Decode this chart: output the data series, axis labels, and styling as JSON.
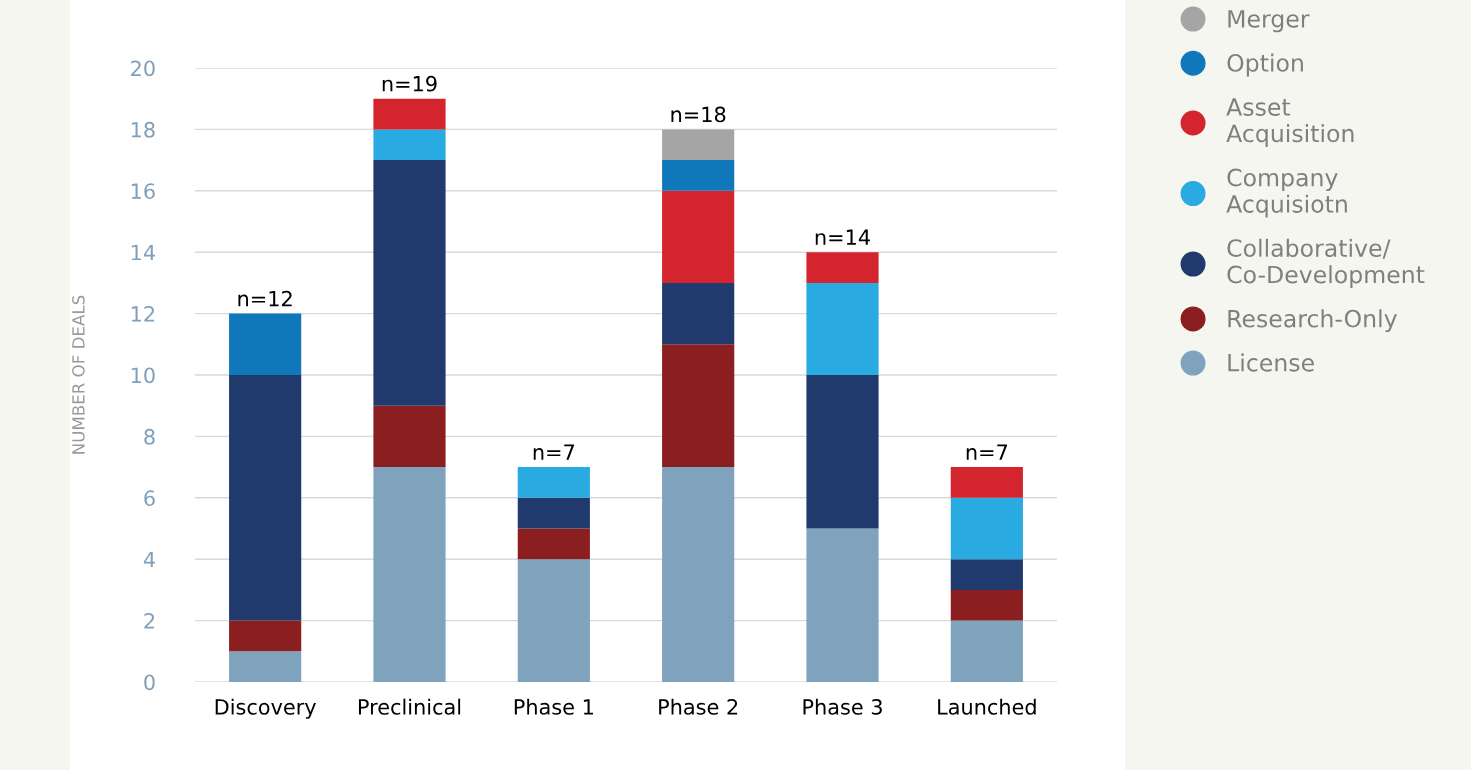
{
  "chart_data": {
    "type": "bar",
    "stacked": true,
    "ylabel": "NUMBER OF DEALS",
    "categories": [
      "Discovery",
      "Preclinical",
      "Phase 1",
      "Phase 2",
      "Phase 3",
      "Launched"
    ],
    "series": [
      {
        "name": "License",
        "color": "#7fa3bd",
        "values": [
          1,
          7,
          4,
          7,
          5,
          2
        ]
      },
      {
        "name": "Research-Only",
        "color": "#8b1e1e",
        "values": [
          1,
          2,
          1,
          4,
          0,
          1
        ]
      },
      {
        "name": "Collaborative/\nCo-Development",
        "color": "#203a6e",
        "values": [
          8,
          8,
          1,
          2,
          5,
          1
        ]
      },
      {
        "name": "Company\nAcquisiotn",
        "color": "#29aae1",
        "values": [
          0,
          1,
          1,
          0,
          3,
          2
        ]
      },
      {
        "name": "Asset\nAcquisition",
        "color": "#d4242e",
        "values": [
          0,
          1,
          0,
          3,
          1,
          1
        ]
      },
      {
        "name": "Option",
        "color": "#1177bb",
        "values": [
          2,
          0,
          0,
          1,
          0,
          0
        ]
      },
      {
        "name": "Merger",
        "color": "#a5a5a5",
        "values": [
          0,
          0,
          0,
          1,
          0,
          0
        ]
      }
    ],
    "totals": [
      "n=12",
      "n=19",
      "n=7",
      "n=18",
      "n=14",
      "n=7"
    ],
    "ylim": [
      0,
      20
    ],
    "yticks": [
      0,
      2,
      4,
      6,
      8,
      10,
      12,
      14,
      16,
      18,
      20
    ],
    "grid": "y",
    "legend": "right",
    "marker": "circle"
  }
}
